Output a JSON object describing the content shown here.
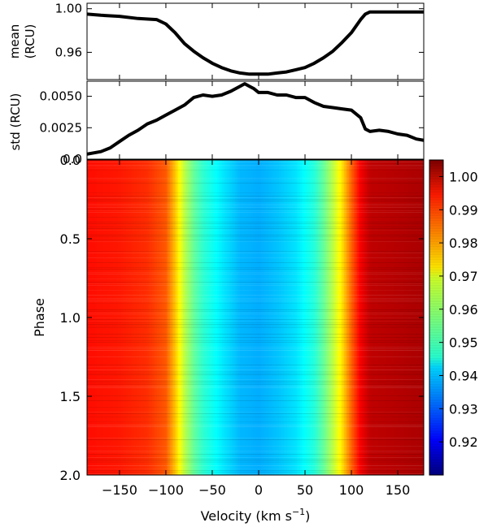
{
  "chart_data": [
    {
      "type": "line",
      "panel": "mean",
      "ylabel": [
        "mean",
        "(RCU)"
      ],
      "xlim": [
        -185,
        178
      ],
      "ylim": [
        0.935,
        1.005
      ],
      "yticks": [
        1.0,
        0.96
      ],
      "ytick_labels": [
        "1.00",
        "0.96"
      ],
      "x": [
        -185,
        -170,
        -150,
        -130,
        -110,
        -100,
        -90,
        -80,
        -70,
        -60,
        -50,
        -40,
        -30,
        -20,
        -10,
        0,
        10,
        20,
        30,
        40,
        50,
        60,
        70,
        80,
        90,
        100,
        110,
        115,
        120,
        130,
        150,
        178
      ],
      "values": [
        0.995,
        0.994,
        0.993,
        0.991,
        0.99,
        0.986,
        0.978,
        0.968,
        0.961,
        0.955,
        0.95,
        0.946,
        0.943,
        0.941,
        0.94,
        0.94,
        0.94,
        0.941,
        0.942,
        0.944,
        0.946,
        0.95,
        0.955,
        0.961,
        0.969,
        0.978,
        0.99,
        0.995,
        0.997,
        0.997,
        0.997,
        0.997
      ]
    },
    {
      "type": "line",
      "panel": "std",
      "ylabel": [
        "std (RCU)"
      ],
      "xlim": [
        -185,
        178
      ],
      "ylim": [
        0.0,
        0.0062
      ],
      "yticks": [
        0.005,
        0.0025,
        0.0
      ],
      "ytick_labels": [
        "0.0050",
        "0.0025",
        "0.0"
      ],
      "x": [
        -185,
        -170,
        -160,
        -150,
        -140,
        -130,
        -120,
        -110,
        -100,
        -90,
        -80,
        -70,
        -60,
        -50,
        -40,
        -30,
        -20,
        -15,
        -10,
        -5,
        0,
        10,
        20,
        30,
        40,
        50,
        60,
        70,
        80,
        90,
        100,
        110,
        115,
        120,
        130,
        140,
        150,
        160,
        170,
        178
      ],
      "values": [
        0.0004,
        0.0006,
        0.0009,
        0.0014,
        0.0019,
        0.0023,
        0.0028,
        0.0031,
        0.0035,
        0.0039,
        0.0043,
        0.0049,
        0.0051,
        0.005,
        0.0051,
        0.0054,
        0.0058,
        0.006,
        0.0058,
        0.0056,
        0.0053,
        0.0053,
        0.0051,
        0.0051,
        0.0049,
        0.0049,
        0.0045,
        0.0042,
        0.0041,
        0.004,
        0.0039,
        0.0033,
        0.0024,
        0.0022,
        0.0023,
        0.0022,
        0.002,
        0.0019,
        0.0016,
        0.0015
      ]
    },
    {
      "type": "heatmap",
      "panel": "dynamic-spectrum",
      "xlabel": "Velocity (km s",
      "xlabel_superscript": "−1",
      "xlabel_suffix": ")",
      "ylabel": "Phase",
      "xlim": [
        -185,
        178
      ],
      "ylim": [
        0.0,
        2.0
      ],
      "y_inverted": true,
      "xticks": [
        -150,
        -100,
        -50,
        0,
        50,
        100,
        150
      ],
      "xtick_labels": [
        "−150",
        "−100",
        "−50",
        "0",
        "50",
        "100",
        "150"
      ],
      "yticks": [
        0.0,
        0.5,
        1.0,
        1.5,
        2.0
      ],
      "ytick_labels": [
        "0.0",
        "0.5",
        "1.0",
        "1.5",
        "2.0"
      ],
      "colorscale": "jet",
      "color_range": [
        0.91,
        1.005
      ],
      "colorbar_ticks": [
        1.0,
        0.99,
        0.98,
        0.97,
        0.96,
        0.95,
        0.94,
        0.93,
        0.92
      ],
      "colorbar_tick_labels": [
        "1.00",
        "0.99",
        "0.98",
        "0.97",
        "0.96",
        "0.95",
        "0.94",
        "0.93",
        "0.92"
      ],
      "profile_velocity": [
        -185,
        -150,
        -120,
        -100,
        -90,
        -80,
        -70,
        -60,
        -40,
        -20,
        0,
        20,
        40,
        60,
        70,
        80,
        90,
        100,
        110,
        120,
        150,
        178
      ],
      "profile_value": [
        0.992,
        0.991,
        0.989,
        0.985,
        0.975,
        0.963,
        0.955,
        0.95,
        0.944,
        0.939,
        0.938,
        0.94,
        0.943,
        0.949,
        0.955,
        0.963,
        0.972,
        0.984,
        0.994,
        0.999,
        1.0,
        1.001
      ]
    }
  ]
}
